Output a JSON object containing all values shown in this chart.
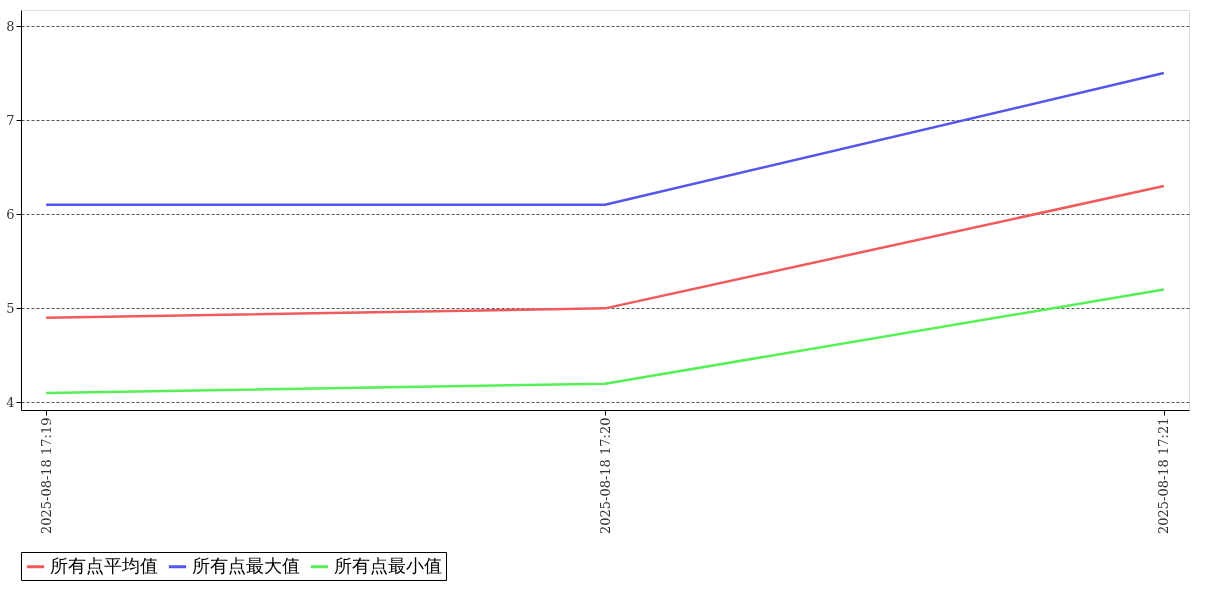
{
  "chart_data": {
    "type": "line",
    "categories": [
      "2025-08-18 17:19",
      "2025-08-18 17:20",
      "2025-08-18 17:21"
    ],
    "series": [
      {
        "name": "所有点平均值",
        "color": "#f05a5a",
        "values": [
          4.9,
          5.0,
          6.3
        ]
      },
      {
        "name": "所有点最大值",
        "color": "#5555ee",
        "values": [
          6.1,
          6.1,
          7.5
        ]
      },
      {
        "name": "所有点最小值",
        "color": "#55f055",
        "values": [
          4.1,
          4.2,
          5.2
        ]
      }
    ],
    "ylim": [
      3.92,
      8.17
    ],
    "yticks": [
      4,
      5,
      6,
      7,
      8
    ],
    "grid": "y",
    "legend": "bottom",
    "marker": "none",
    "line_style": "solid"
  }
}
